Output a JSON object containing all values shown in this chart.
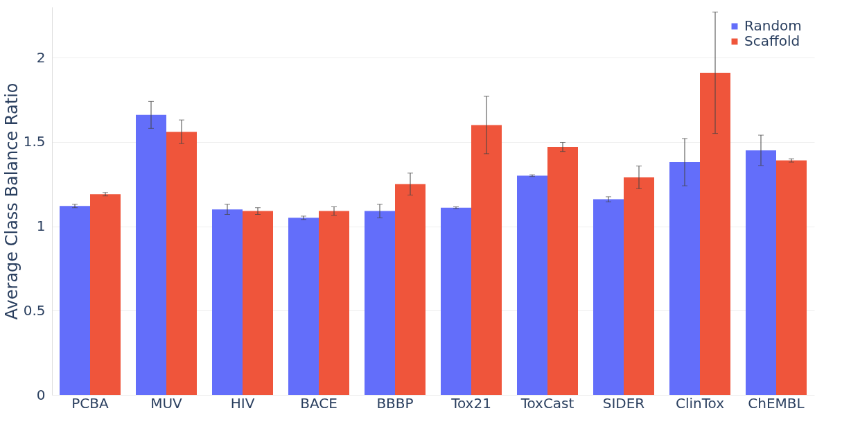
{
  "chart_data": {
    "type": "bar",
    "ylabel": "Average Class Balance Ratio",
    "categories": [
      "PCBA",
      "MUV",
      "HIV",
      "BACE",
      "BBBP",
      "Tox21",
      "ToxCast",
      "SIDER",
      "ClinTox",
      "ChEMBL"
    ],
    "series": [
      {
        "name": "Random",
        "color": "#636efa",
        "values": [
          1.12,
          1.66,
          1.1,
          1.05,
          1.09,
          1.11,
          1.3,
          1.16,
          1.38,
          1.45
        ],
        "errors": [
          0.01,
          0.08,
          0.03,
          0.01,
          0.04,
          0.005,
          0.005,
          0.015,
          0.14,
          0.09
        ]
      },
      {
        "name": "Scaffold",
        "color": "#ef553b",
        "values": [
          1.19,
          1.56,
          1.09,
          1.09,
          1.25,
          1.6,
          1.47,
          1.29,
          1.91,
          1.39
        ],
        "errors": [
          0.01,
          0.07,
          0.02,
          0.025,
          0.065,
          0.17,
          0.027,
          0.067,
          0.36,
          0.01
        ]
      }
    ],
    "ylim": [
      0,
      2.3
    ],
    "yticks": [
      0,
      0.5,
      1,
      1.5,
      2
    ],
    "grid": "y",
    "legend": "top right"
  }
}
